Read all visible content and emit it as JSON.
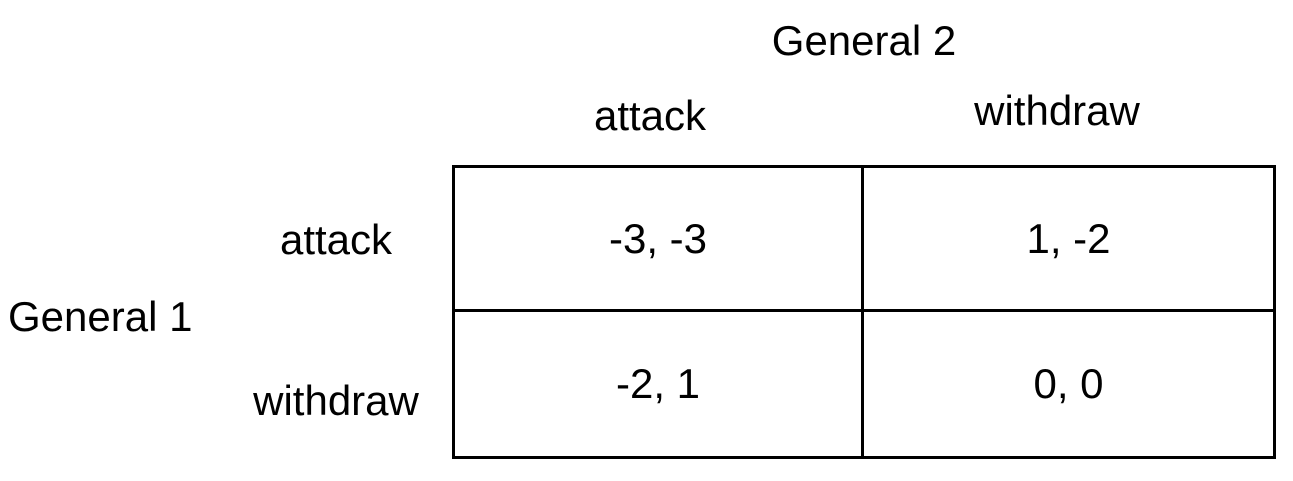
{
  "payoff_matrix": {
    "column_player": "General 2",
    "row_player": "General 1",
    "column_strategies": [
      "attack",
      "withdraw"
    ],
    "row_strategies": [
      "attack",
      "withdraw"
    ],
    "payoffs": [
      [
        "-3, -3",
        "1, -2"
      ],
      [
        "-2, 1",
        "0, 0"
      ]
    ]
  }
}
